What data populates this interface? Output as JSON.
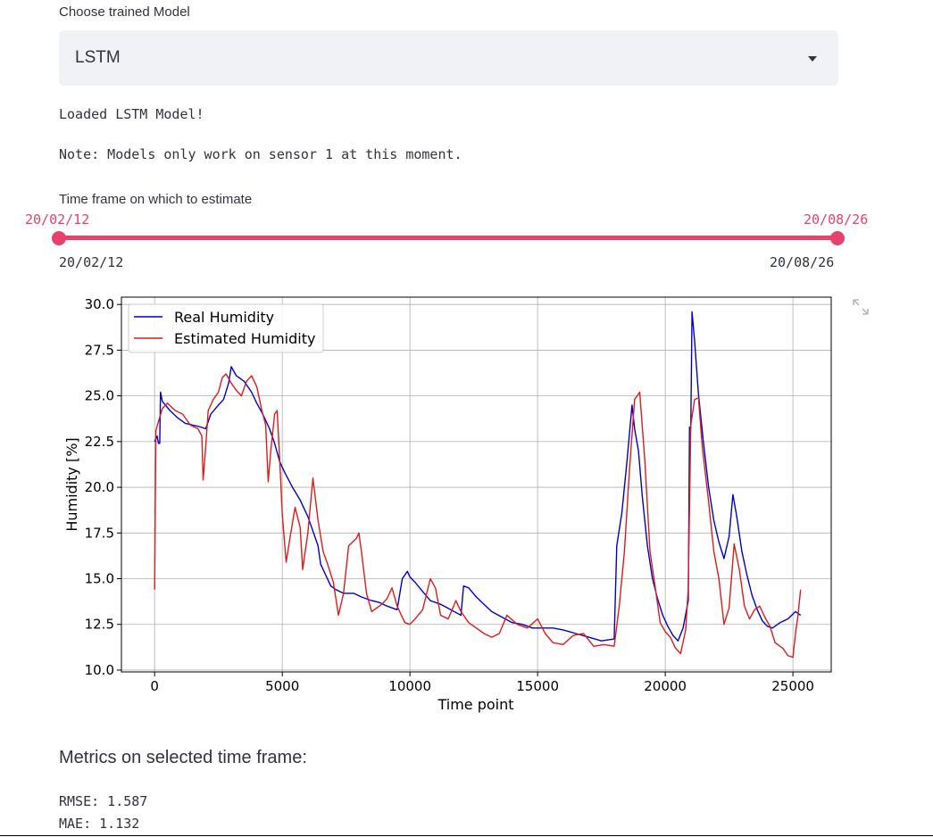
{
  "model_select": {
    "label": "Choose trained Model",
    "value": "LSTM"
  },
  "messages": {
    "loaded": "Loaded LSTM Model!",
    "note": "Note: Models only work on sensor 1 at this moment."
  },
  "slider": {
    "label": "Time frame on which to estimate",
    "start_value": "20/02/12",
    "end_value": "20/08/26",
    "min_label": "20/02/12",
    "max_label": "20/08/26",
    "color": "#e8416b"
  },
  "chart_data": {
    "type": "line",
    "xlabel": "Time point",
    "ylabel": "Humidity [%]",
    "xlim": [
      -1300,
      26500
    ],
    "ylim": [
      9.9,
      30.4
    ],
    "xticks": [
      0,
      5000,
      10000,
      15000,
      20000,
      25000
    ],
    "yticks": [
      10.0,
      12.5,
      15.0,
      17.5,
      20.0,
      22.5,
      25.0,
      27.5,
      30.0
    ],
    "grid": true,
    "legend_position": "top-left",
    "series": [
      {
        "name": "Real Humidity",
        "color": "#0000cc",
        "points": [
          [
            0,
            22.5
          ],
          [
            100,
            22.8
          ],
          [
            150,
            22.4
          ],
          [
            200,
            22.4
          ],
          [
            230,
            25.2
          ],
          [
            300,
            24.7
          ],
          [
            600,
            24.2
          ],
          [
            900,
            23.8
          ],
          [
            1200,
            23.5
          ],
          [
            1500,
            23.4
          ],
          [
            1800,
            23.3
          ],
          [
            2000,
            23.2
          ],
          [
            2200,
            24.0
          ],
          [
            2500,
            24.5
          ],
          [
            2700,
            24.8
          ],
          [
            2900,
            25.7
          ],
          [
            3000,
            26.6
          ],
          [
            3200,
            26.1
          ],
          [
            3500,
            25.8
          ],
          [
            3800,
            25.2
          ],
          [
            4000,
            24.6
          ],
          [
            4200,
            24.1
          ],
          [
            4500,
            23.2
          ],
          [
            4700,
            22.4
          ],
          [
            4900,
            21.4
          ],
          [
            5100,
            20.8
          ],
          [
            5400,
            20.0
          ],
          [
            5700,
            19.3
          ],
          [
            6000,
            18.4
          ],
          [
            6200,
            17.6
          ],
          [
            6400,
            16.8
          ],
          [
            6500,
            15.8
          ],
          [
            6700,
            15.2
          ],
          [
            6900,
            14.6
          ],
          [
            7100,
            14.4
          ],
          [
            7400,
            14.2
          ],
          [
            7800,
            14.2
          ],
          [
            8100,
            14.0
          ],
          [
            8500,
            13.8
          ],
          [
            8800,
            13.7
          ],
          [
            9100,
            13.5
          ],
          [
            9500,
            13.3
          ],
          [
            9700,
            15.0
          ],
          [
            9900,
            15.4
          ],
          [
            10000,
            15.1
          ],
          [
            10200,
            14.8
          ],
          [
            10500,
            14.3
          ],
          [
            10800,
            13.8
          ],
          [
            11200,
            13.6
          ],
          [
            11600,
            13.3
          ],
          [
            12000,
            13.0
          ],
          [
            12100,
            14.6
          ],
          [
            12300,
            14.5
          ],
          [
            12600,
            14.0
          ],
          [
            12900,
            13.6
          ],
          [
            13200,
            13.2
          ],
          [
            13600,
            12.9
          ],
          [
            14000,
            12.6
          ],
          [
            14400,
            12.5
          ],
          [
            14800,
            12.3
          ],
          [
            15200,
            12.3
          ],
          [
            15600,
            12.3
          ],
          [
            16000,
            12.2
          ],
          [
            16500,
            12.0
          ],
          [
            17000,
            11.8
          ],
          [
            17500,
            11.6
          ],
          [
            18000,
            11.7
          ],
          [
            18100,
            16.8
          ],
          [
            18300,
            18.6
          ],
          [
            18500,
            21.4
          ],
          [
            18700,
            24.5
          ],
          [
            18800,
            23.2
          ],
          [
            18950,
            22.0
          ],
          [
            19100,
            19.5
          ],
          [
            19300,
            16.8
          ],
          [
            19500,
            15.0
          ],
          [
            19700,
            13.9
          ],
          [
            19900,
            13.0
          ],
          [
            20100,
            12.4
          ],
          [
            20300,
            11.9
          ],
          [
            20500,
            11.6
          ],
          [
            20700,
            12.3
          ],
          [
            20900,
            13.8
          ],
          [
            20950,
            23.3
          ],
          [
            21000,
            23.2
          ],
          [
            21050,
            29.6
          ],
          [
            21150,
            28.0
          ],
          [
            21300,
            25.1
          ],
          [
            21500,
            22.4
          ],
          [
            21700,
            20.0
          ],
          [
            21900,
            18.2
          ],
          [
            22100,
            17.0
          ],
          [
            22300,
            16.1
          ],
          [
            22500,
            17.3
          ],
          [
            22650,
            19.6
          ],
          [
            22800,
            18.4
          ],
          [
            23000,
            16.5
          ],
          [
            23200,
            15.2
          ],
          [
            23400,
            14.1
          ],
          [
            23600,
            13.3
          ],
          [
            23800,
            12.7
          ],
          [
            24000,
            12.4
          ],
          [
            24200,
            12.3
          ],
          [
            24500,
            12.6
          ],
          [
            24800,
            12.8
          ],
          [
            25100,
            13.2
          ],
          [
            25300,
            13.0
          ]
        ]
      },
      {
        "name": "Estimated Humidity",
        "color": "#e01b1b",
        "points": [
          [
            0,
            14.4
          ],
          [
            50,
            23.1
          ],
          [
            150,
            23.6
          ],
          [
            300,
            24.3
          ],
          [
            500,
            24.6
          ],
          [
            800,
            24.2
          ],
          [
            1100,
            24.0
          ],
          [
            1400,
            23.4
          ],
          [
            1700,
            23.2
          ],
          [
            1850,
            22.8
          ],
          [
            1900,
            20.4
          ],
          [
            2000,
            22.2
          ],
          [
            2100,
            24.2
          ],
          [
            2300,
            24.8
          ],
          [
            2500,
            25.2
          ],
          [
            2650,
            26.0
          ],
          [
            2800,
            26.2
          ],
          [
            3000,
            25.7
          ],
          [
            3200,
            25.3
          ],
          [
            3400,
            25.0
          ],
          [
            3600,
            25.8
          ],
          [
            3800,
            26.1
          ],
          [
            4000,
            25.5
          ],
          [
            4200,
            24.2
          ],
          [
            4350,
            23.4
          ],
          [
            4450,
            20.3
          ],
          [
            4550,
            22.0
          ],
          [
            4700,
            24.0
          ],
          [
            4800,
            24.2
          ],
          [
            4900,
            21.5
          ],
          [
            5000,
            18.5
          ],
          [
            5150,
            15.9
          ],
          [
            5300,
            17.2
          ],
          [
            5500,
            18.9
          ],
          [
            5700,
            17.8
          ],
          [
            5800,
            15.5
          ],
          [
            6000,
            17.5
          ],
          [
            6200,
            20.5
          ],
          [
            6400,
            18.2
          ],
          [
            6600,
            16.5
          ],
          [
            6800,
            15.7
          ],
          [
            7000,
            14.8
          ],
          [
            7200,
            13.0
          ],
          [
            7400,
            14.2
          ],
          [
            7600,
            16.8
          ],
          [
            7900,
            17.2
          ],
          [
            8000,
            17.5
          ],
          [
            8100,
            16.5
          ],
          [
            8300,
            14.2
          ],
          [
            8500,
            13.2
          ],
          [
            8700,
            13.4
          ],
          [
            8900,
            13.6
          ],
          [
            9100,
            13.9
          ],
          [
            9300,
            14.5
          ],
          [
            9500,
            13.5
          ],
          [
            9800,
            12.6
          ],
          [
            10000,
            12.5
          ],
          [
            10200,
            12.8
          ],
          [
            10500,
            13.3
          ],
          [
            10800,
            15.0
          ],
          [
            11000,
            14.5
          ],
          [
            11200,
            13.0
          ],
          [
            11500,
            12.8
          ],
          [
            11800,
            13.8
          ],
          [
            12000,
            13.2
          ],
          [
            12300,
            12.6
          ],
          [
            12600,
            12.3
          ],
          [
            12900,
            12.0
          ],
          [
            13200,
            11.8
          ],
          [
            13500,
            12.0
          ],
          [
            13800,
            13.0
          ],
          [
            14200,
            12.5
          ],
          [
            14600,
            12.3
          ],
          [
            15000,
            12.8
          ],
          [
            15300,
            12.0
          ],
          [
            15600,
            11.5
          ],
          [
            16000,
            11.4
          ],
          [
            16400,
            11.9
          ],
          [
            16800,
            12.0
          ],
          [
            17200,
            11.3
          ],
          [
            17600,
            11.4
          ],
          [
            18000,
            11.3
          ],
          [
            18200,
            13.5
          ],
          [
            18400,
            16.5
          ],
          [
            18600,
            21.0
          ],
          [
            18800,
            24.8
          ],
          [
            19000,
            25.2
          ],
          [
            19200,
            21.5
          ],
          [
            19400,
            16.5
          ],
          [
            19600,
            14.6
          ],
          [
            19800,
            12.6
          ],
          [
            20000,
            12.1
          ],
          [
            20200,
            11.8
          ],
          [
            20400,
            11.2
          ],
          [
            20600,
            10.9
          ],
          [
            20800,
            12.2
          ],
          [
            20900,
            14.5
          ],
          [
            21000,
            23.4
          ],
          [
            21150,
            24.8
          ],
          [
            21300,
            24.9
          ],
          [
            21450,
            22.2
          ],
          [
            21700,
            19.2
          ],
          [
            21900,
            16.5
          ],
          [
            22100,
            15.0
          ],
          [
            22300,
            12.5
          ],
          [
            22500,
            13.4
          ],
          [
            22700,
            16.9
          ],
          [
            22900,
            15.5
          ],
          [
            23100,
            13.5
          ],
          [
            23300,
            12.8
          ],
          [
            23500,
            13.3
          ],
          [
            23700,
            13.5
          ],
          [
            23900,
            12.9
          ],
          [
            24100,
            12.4
          ],
          [
            24300,
            11.5
          ],
          [
            24600,
            11.2
          ],
          [
            24800,
            10.8
          ],
          [
            25000,
            10.7
          ],
          [
            25100,
            12.0
          ],
          [
            25200,
            13.0
          ],
          [
            25300,
            14.4
          ]
        ]
      }
    ]
  },
  "metrics": {
    "heading": "Metrics on selected time frame:",
    "rmse": "RMSE: 1.587",
    "mae": "MAE: 1.132"
  },
  "icons": {
    "select_caret": "chevron-down-icon",
    "fullscreen": "expand-icon"
  }
}
